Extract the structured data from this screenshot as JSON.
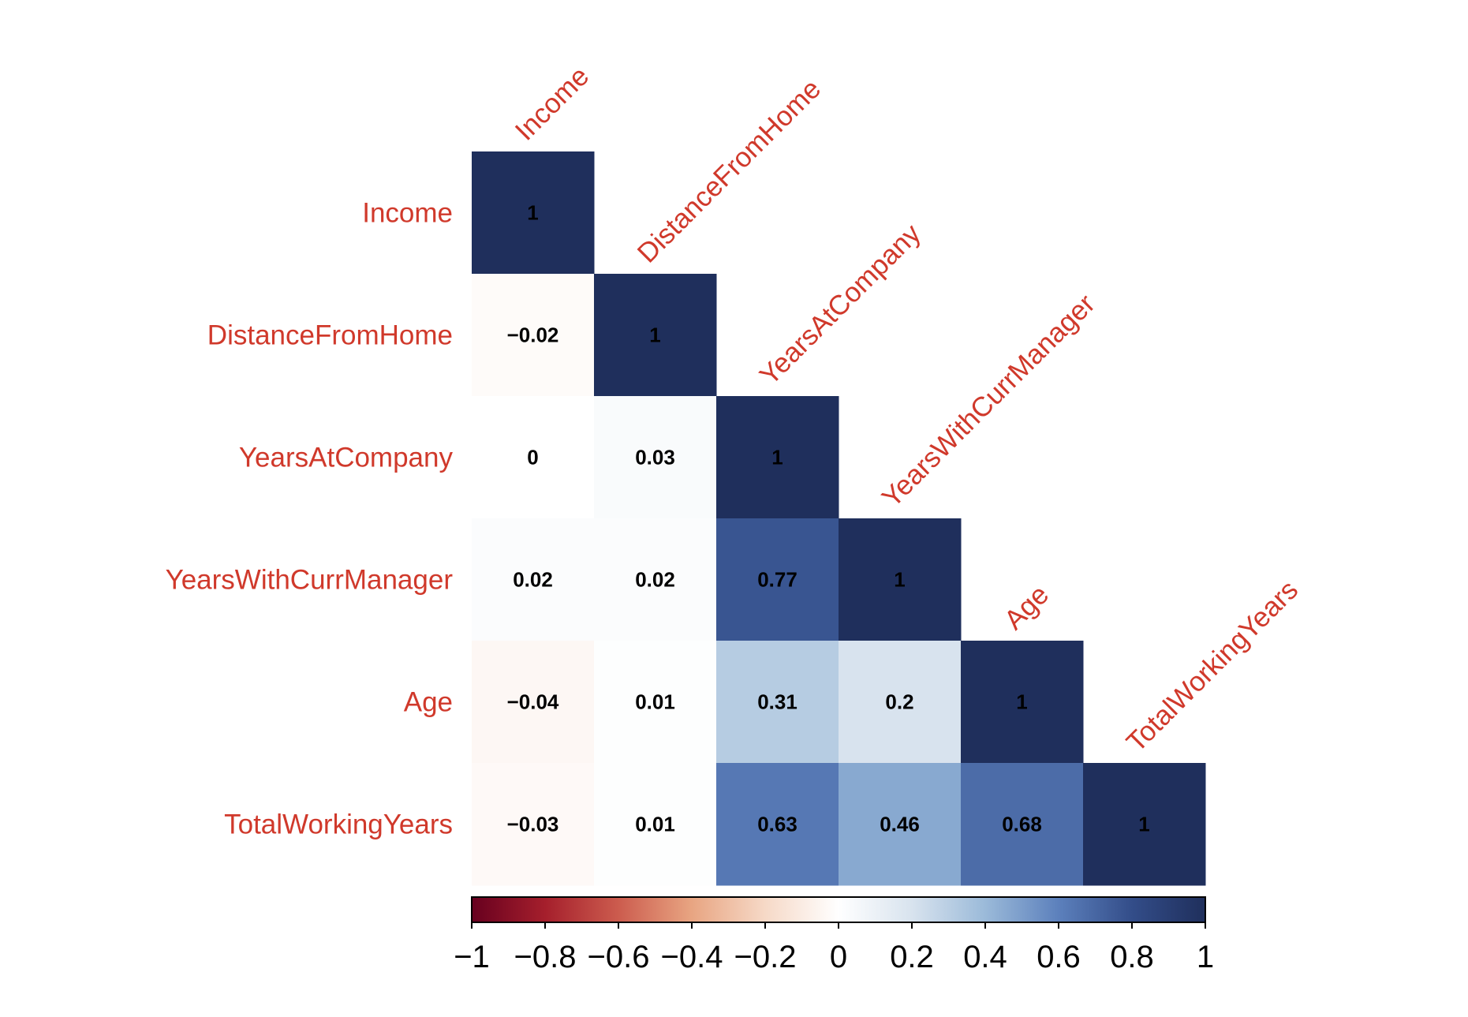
{
  "chart_data": {
    "type": "heatmap",
    "variables": [
      "Income",
      "DistanceFromHome",
      "YearsAtCompany",
      "YearsWithCurrManager",
      "Age",
      "TotalWorkingYears"
    ],
    "matrix_lower": [
      [
        1
      ],
      [
        -0.02,
        1
      ],
      [
        0,
        0.03,
        1
      ],
      [
        0.02,
        0.02,
        0.77,
        1
      ],
      [
        -0.04,
        0.01,
        0.31,
        0.2,
        1
      ],
      [
        -0.03,
        0.01,
        0.63,
        0.46,
        0.68,
        1
      ]
    ],
    "cell_labels": [
      [
        "1"
      ],
      [
        "−0.02",
        "1"
      ],
      [
        "0",
        "0.03",
        "1"
      ],
      [
        "0.02",
        "0.02",
        "0.77",
        "1"
      ],
      [
        "−0.04",
        "0.01",
        "0.31",
        "0.2",
        "1"
      ],
      [
        "−0.03",
        "0.01",
        "0.63",
        "0.46",
        "0.68",
        "1"
      ]
    ],
    "colorbar": {
      "range": [
        -1,
        1
      ],
      "ticks": [
        -1,
        -0.8,
        -0.6,
        -0.4,
        -0.2,
        0,
        0.2,
        0.4,
        0.6,
        0.8,
        1
      ],
      "tick_labels": [
        "−1",
        "−0.8",
        "−0.6",
        "−0.4",
        "−0.2",
        "0",
        "0.2",
        "0.4",
        "0.6",
        "0.8",
        "1"
      ]
    },
    "colors": {
      "negative_end": "#67001f",
      "mid": "#ffffff",
      "positive_end": "#1f2f5c",
      "label_color": "#d0392b"
    },
    "layout": "lower-triangle with diagonal labels"
  }
}
